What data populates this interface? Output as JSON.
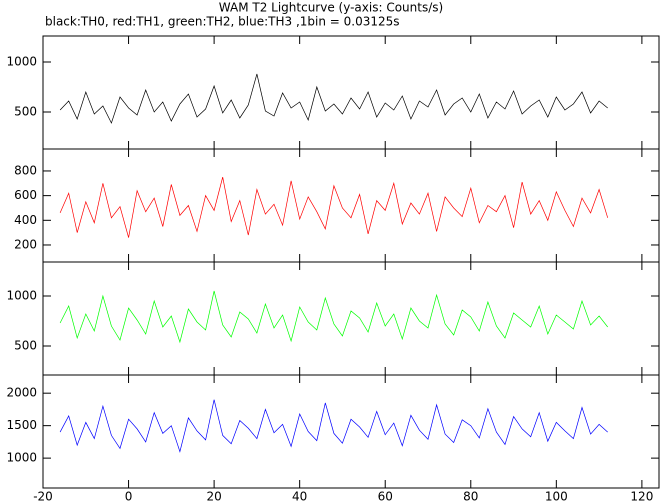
{
  "title": "WAM T2 Lightcurve (y-axis: Counts/s)",
  "subtitle": "black:TH0, red:TH1, green:TH2, blue:TH3 ,1bin = 0.03125s",
  "chart_data": [
    {
      "type": "line",
      "color": "#000000",
      "x": [
        -16,
        -14,
        -12,
        -10,
        -8,
        -6,
        -4,
        -2,
        0,
        2,
        4,
        6,
        8,
        10,
        12,
        14,
        16,
        18,
        20,
        22,
        24,
        26,
        28,
        30,
        32,
        34,
        36,
        38,
        40,
        42,
        44,
        46,
        48,
        50,
        52,
        54,
        56,
        58,
        60,
        62,
        64,
        66,
        68,
        70,
        72,
        74,
        76,
        78,
        80,
        82,
        84,
        86,
        88,
        90,
        92,
        94,
        96,
        98,
        100,
        102,
        104,
        106,
        108,
        110,
        112
      ],
      "values": [
        520,
        610,
        430,
        700,
        480,
        560,
        390,
        650,
        540,
        470,
        720,
        500,
        600,
        410,
        580,
        680,
        450,
        530,
        760,
        490,
        620,
        440,
        570,
        880,
        510,
        460,
        690,
        540,
        600,
        420,
        750,
        510,
        580,
        480,
        640,
        530,
        700,
        450,
        590,
        520,
        660,
        430,
        610,
        550,
        720,
        470,
        580,
        640,
        500,
        680,
        440,
        600,
        530,
        710,
        480,
        560,
        620,
        450,
        650,
        520,
        580,
        700,
        490,
        610,
        540
      ],
      "ylim": [
        130,
        1260
      ],
      "yticks": [
        500,
        1000
      ]
    },
    {
      "type": "line",
      "color": "#ff0000",
      "x": [
        -16,
        -14,
        -12,
        -10,
        -8,
        -6,
        -4,
        -2,
        0,
        2,
        4,
        6,
        8,
        10,
        12,
        14,
        16,
        18,
        20,
        22,
        24,
        26,
        28,
        30,
        32,
        34,
        36,
        38,
        40,
        42,
        44,
        46,
        48,
        50,
        52,
        54,
        56,
        58,
        60,
        62,
        64,
        66,
        68,
        70,
        72,
        74,
        76,
        78,
        80,
        82,
        84,
        86,
        88,
        90,
        92,
        94,
        96,
        98,
        100,
        102,
        104,
        106,
        108,
        110,
        112
      ],
      "values": [
        460,
        620,
        300,
        550,
        380,
        700,
        420,
        510,
        260,
        640,
        470,
        580,
        350,
        690,
        440,
        520,
        310,
        600,
        480,
        750,
        390,
        560,
        280,
        650,
        450,
        530,
        360,
        720,
        410,
        590,
        470,
        330,
        680,
        500,
        420,
        610,
        290,
        560,
        480,
        700,
        370,
        540,
        450,
        620,
        310,
        590,
        500,
        430,
        660,
        380,
        520,
        470,
        600,
        340,
        710,
        450,
        560,
        400,
        630,
        480,
        350,
        580,
        460,
        650,
        420
      ],
      "ylim": [
        62,
        978
      ],
      "yticks": [
        200,
        400,
        600,
        800
      ]
    },
    {
      "type": "line",
      "color": "#00ff00",
      "x": [
        -16,
        -14,
        -12,
        -10,
        -8,
        -6,
        -4,
        -2,
        0,
        2,
        4,
        6,
        8,
        10,
        12,
        14,
        16,
        18,
        20,
        22,
        24,
        26,
        28,
        30,
        32,
        34,
        36,
        38,
        40,
        42,
        44,
        46,
        48,
        50,
        52,
        54,
        56,
        58,
        60,
        62,
        64,
        66,
        68,
        70,
        72,
        74,
        76,
        78,
        80,
        82,
        84,
        86,
        88,
        90,
        92,
        94,
        96,
        98,
        100,
        102,
        104,
        106,
        108,
        110,
        112
      ],
      "values": [
        730,
        900,
        580,
        820,
        650,
        1000,
        700,
        560,
        880,
        760,
        620,
        950,
        690,
        800,
        540,
        870,
        740,
        660,
        1050,
        710,
        590,
        840,
        770,
        630,
        920,
        680,
        810,
        550,
        890,
        740,
        660,
        980,
        720,
        600,
        850,
        780,
        640,
        930,
        700,
        820,
        570,
        880,
        750,
        680,
        1010,
        720,
        610,
        860,
        790,
        650,
        940,
        700,
        580,
        830,
        760,
        690,
        900,
        620,
        810,
        740,
        670,
        950,
        710,
        800,
        690
      ],
      "ylim": [
        210,
        1340
      ],
      "yticks": [
        500,
        1000
      ]
    },
    {
      "type": "line",
      "color": "#0000ff",
      "x": [
        -16,
        -14,
        -12,
        -10,
        -8,
        -6,
        -4,
        -2,
        0,
        2,
        4,
        6,
        8,
        10,
        12,
        14,
        16,
        18,
        20,
        22,
        24,
        26,
        28,
        30,
        32,
        34,
        36,
        38,
        40,
        42,
        44,
        46,
        48,
        50,
        52,
        54,
        56,
        58,
        60,
        62,
        64,
        66,
        68,
        70,
        72,
        74,
        76,
        78,
        80,
        82,
        84,
        86,
        88,
        90,
        92,
        94,
        96,
        98,
        100,
        102,
        104,
        106,
        108,
        110,
        112
      ],
      "values": [
        1400,
        1650,
        1200,
        1550,
        1300,
        1800,
        1350,
        1150,
        1600,
        1450,
        1250,
        1700,
        1380,
        1500,
        1100,
        1620,
        1420,
        1280,
        1900,
        1350,
        1220,
        1580,
        1460,
        1300,
        1750,
        1390,
        1520,
        1180,
        1680,
        1410,
        1270,
        1850,
        1380,
        1230,
        1600,
        1480,
        1320,
        1720,
        1360,
        1540,
        1190,
        1660,
        1430,
        1290,
        1820,
        1370,
        1240,
        1590,
        1500,
        1310,
        1760,
        1400,
        1210,
        1640,
        1450,
        1330,
        1700,
        1260,
        1550,
        1420,
        1300,
        1780,
        1370,
        1520,
        1400
      ],
      "ylim": [
        540,
        2280
      ],
      "yticks": [
        1000,
        1500,
        2000
      ],
      "xlim": [
        -20,
        124
      ],
      "xticks": [
        -20,
        0,
        20,
        40,
        60,
        80,
        100,
        120
      ]
    }
  ]
}
